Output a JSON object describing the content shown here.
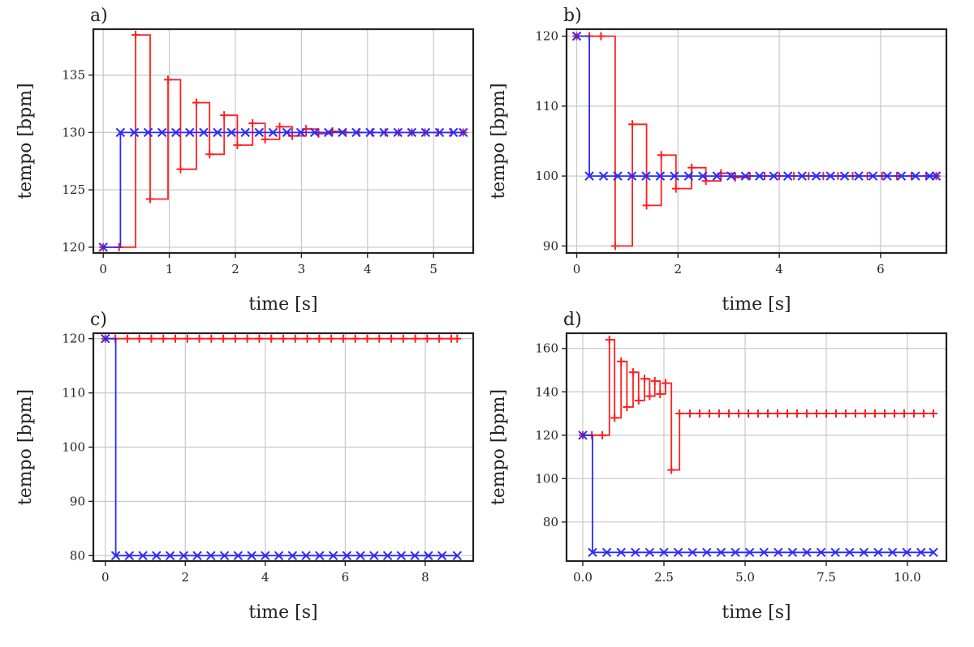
{
  "colors": {
    "red": "#ff1f1f",
    "blue": "#2a2aff"
  },
  "chart_data": [
    {
      "type": "line",
      "panel_label": "a)",
      "xlabel": "time [s]",
      "ylabel": "tempo [bpm]",
      "xlim": [
        -0.15,
        5.6
      ],
      "ylim": [
        119.5,
        139
      ],
      "xticks": [
        0,
        1,
        2,
        3,
        4,
        5
      ],
      "yticks": [
        120,
        125,
        130,
        135
      ],
      "grid": true,
      "step": "post",
      "series": [
        {
          "color": "red",
          "marker": "plus",
          "x": [
            0,
            0.24,
            0.49,
            0.71,
            0.98,
            1.17,
            1.41,
            1.61,
            1.83,
            2.03,
            2.26,
            2.45,
            2.67,
            2.86,
            3.07,
            3.26,
            3.47,
            3.67,
            3.87,
            4.07,
            4.27,
            4.47,
            4.67,
            4.87,
            5.07,
            5.27,
            5.45
          ],
          "y": [
            120,
            120,
            138.5,
            124.2,
            134.6,
            126.8,
            132.6,
            128.1,
            131.5,
            128.9,
            130.8,
            129.4,
            130.5,
            129.7,
            130.3,
            129.9,
            130.1,
            130,
            130,
            130,
            130,
            130,
            130,
            130,
            130,
            130,
            130
          ]
        },
        {
          "color": "blue",
          "marker": "x",
          "x": [
            0,
            0.26,
            0.47,
            0.68,
            0.89,
            1.1,
            1.31,
            1.52,
            1.73,
            1.94,
            2.15,
            2.36,
            2.57,
            2.78,
            2.99,
            3.2,
            3.41,
            3.62,
            3.83,
            4.04,
            4.25,
            4.46,
            4.67,
            4.88,
            5.09,
            5.3,
            5.45
          ],
          "y": [
            120,
            130,
            130,
            130,
            130,
            130,
            130,
            130,
            130,
            130,
            130,
            130,
            130,
            130,
            130,
            130,
            130,
            130,
            130,
            130,
            130,
            130,
            130,
            130,
            130,
            130,
            130
          ]
        }
      ]
    },
    {
      "type": "line",
      "panel_label": "b)",
      "xlabel": "time [s]",
      "ylabel": "tempo [bpm]",
      "xlim": [
        -0.2,
        7.3
      ],
      "ylim": [
        89,
        121
      ],
      "xticks": [
        0,
        2,
        4,
        6
      ],
      "yticks": [
        90,
        100,
        110,
        120
      ],
      "grid": true,
      "step": "post",
      "series": [
        {
          "color": "red",
          "marker": "plus",
          "x": [
            0,
            0.25,
            0.48,
            0.76,
            1.1,
            1.38,
            1.67,
            1.96,
            2.27,
            2.55,
            2.85,
            3.13,
            3.42,
            3.71,
            4.0,
            4.29,
            4.58,
            4.87,
            5.16,
            5.45,
            5.74,
            6.03,
            6.32,
            6.61,
            6.9,
            7.1
          ],
          "y": [
            120,
            120,
            120,
            90,
            107.4,
            95.8,
            103,
            98.2,
            101.2,
            99.3,
            100.4,
            99.8,
            100,
            100,
            100,
            100,
            100,
            100,
            100,
            100,
            100,
            100,
            100,
            100,
            100,
            100
          ]
        },
        {
          "color": "blue",
          "marker": "x",
          "x": [
            0,
            0.25,
            0.53,
            0.81,
            1.09,
            1.37,
            1.65,
            1.93,
            2.21,
            2.49,
            2.77,
            3.05,
            3.33,
            3.61,
            3.89,
            4.17,
            4.45,
            4.73,
            5.01,
            5.29,
            5.57,
            5.85,
            6.13,
            6.41,
            6.69,
            6.97,
            7.1
          ],
          "y": [
            120,
            100,
            100,
            100,
            100,
            100,
            100,
            100,
            100,
            100,
            100,
            100,
            100,
            100,
            100,
            100,
            100,
            100,
            100,
            100,
            100,
            100,
            100,
            100,
            100,
            100,
            100
          ]
        }
      ]
    },
    {
      "type": "line",
      "panel_label": "c)",
      "xlabel": "time [s]",
      "ylabel": "tempo [bpm]",
      "xlim": [
        -0.3,
        9.2
      ],
      "ylim": [
        79,
        121
      ],
      "xticks": [
        0,
        2,
        4,
        6,
        8
      ],
      "yticks": [
        80,
        90,
        100,
        110,
        120
      ],
      "grid": true,
      "step": "post",
      "series": [
        {
          "color": "red",
          "marker": "plus",
          "x": [
            0,
            0.25,
            0.55,
            0.85,
            1.15,
            1.45,
            1.75,
            2.05,
            2.35,
            2.65,
            2.95,
            3.25,
            3.55,
            3.85,
            4.15,
            4.45,
            4.75,
            5.05,
            5.35,
            5.65,
            5.95,
            6.25,
            6.55,
            6.85,
            7.15,
            7.45,
            7.75,
            8.05,
            8.35,
            8.65,
            8.8
          ],
          "y": [
            120,
            120,
            120,
            120,
            120,
            120,
            120,
            120,
            120,
            120,
            120,
            120,
            120,
            120,
            120,
            120,
            120,
            120,
            120,
            120,
            120,
            120,
            120,
            120,
            120,
            120,
            120,
            120,
            120,
            120,
            120
          ]
        },
        {
          "color": "blue",
          "marker": "x",
          "x": [
            0,
            0.26,
            0.6,
            0.94,
            1.28,
            1.62,
            1.96,
            2.3,
            2.64,
            2.98,
            3.32,
            3.66,
            4.0,
            4.34,
            4.68,
            5.02,
            5.36,
            5.7,
            6.04,
            6.38,
            6.72,
            7.06,
            7.4,
            7.74,
            8.08,
            8.42,
            8.8
          ],
          "y": [
            120,
            80,
            80,
            80,
            80,
            80,
            80,
            80,
            80,
            80,
            80,
            80,
            80,
            80,
            80,
            80,
            80,
            80,
            80,
            80,
            80,
            80,
            80,
            80,
            80,
            80,
            80
          ]
        }
      ]
    },
    {
      "type": "line",
      "panel_label": "d)",
      "xlabel": "time [s]",
      "ylabel": "tempo [bpm]",
      "xlim": [
        -0.5,
        11.2
      ],
      "ylim": [
        62,
        167
      ],
      "xticks": [
        0,
        2.5,
        5,
        7.5,
        10
      ],
      "xticklabels": [
        "0.0",
        "2.5",
        "5.0",
        "7.5",
        "10.0"
      ],
      "yticks": [
        80,
        100,
        120,
        140,
        160
      ],
      "grid": true,
      "step": "post",
      "series": [
        {
          "color": "red",
          "marker": "plus",
          "x": [
            0,
            0.28,
            0.6,
            0.82,
            0.98,
            1.18,
            1.36,
            1.55,
            1.72,
            1.9,
            2.06,
            2.22,
            2.38,
            2.55,
            2.73,
            2.98,
            3.3,
            3.6,
            3.9,
            4.2,
            4.5,
            4.8,
            5.1,
            5.4,
            5.7,
            6.0,
            6.3,
            6.6,
            6.9,
            7.2,
            7.5,
            7.8,
            8.1,
            8.4,
            8.7,
            9.0,
            9.3,
            9.6,
            9.9,
            10.2,
            10.5,
            10.8
          ],
          "y": [
            120,
            120,
            120,
            164,
            128,
            154,
            133,
            149,
            136,
            146,
            138,
            145,
            139,
            144,
            104,
            130,
            130,
            130,
            130,
            130,
            130,
            130,
            130,
            130,
            130,
            130,
            130,
            130,
            130,
            130,
            130,
            130,
            130,
            130,
            130,
            130,
            130,
            130,
            130,
            130,
            130,
            130
          ]
        },
        {
          "color": "blue",
          "marker": "x",
          "x": [
            0,
            0.3,
            0.74,
            1.18,
            1.62,
            2.06,
            2.5,
            2.94,
            3.38,
            3.82,
            4.26,
            4.7,
            5.14,
            5.58,
            6.02,
            6.46,
            6.9,
            7.34,
            7.78,
            8.22,
            8.66,
            9.1,
            9.54,
            9.98,
            10.42,
            10.8
          ],
          "y": [
            120,
            66,
            66,
            66,
            66,
            66,
            66,
            66,
            66,
            66,
            66,
            66,
            66,
            66,
            66,
            66,
            66,
            66,
            66,
            66,
            66,
            66,
            66,
            66,
            66,
            66
          ]
        }
      ]
    }
  ]
}
